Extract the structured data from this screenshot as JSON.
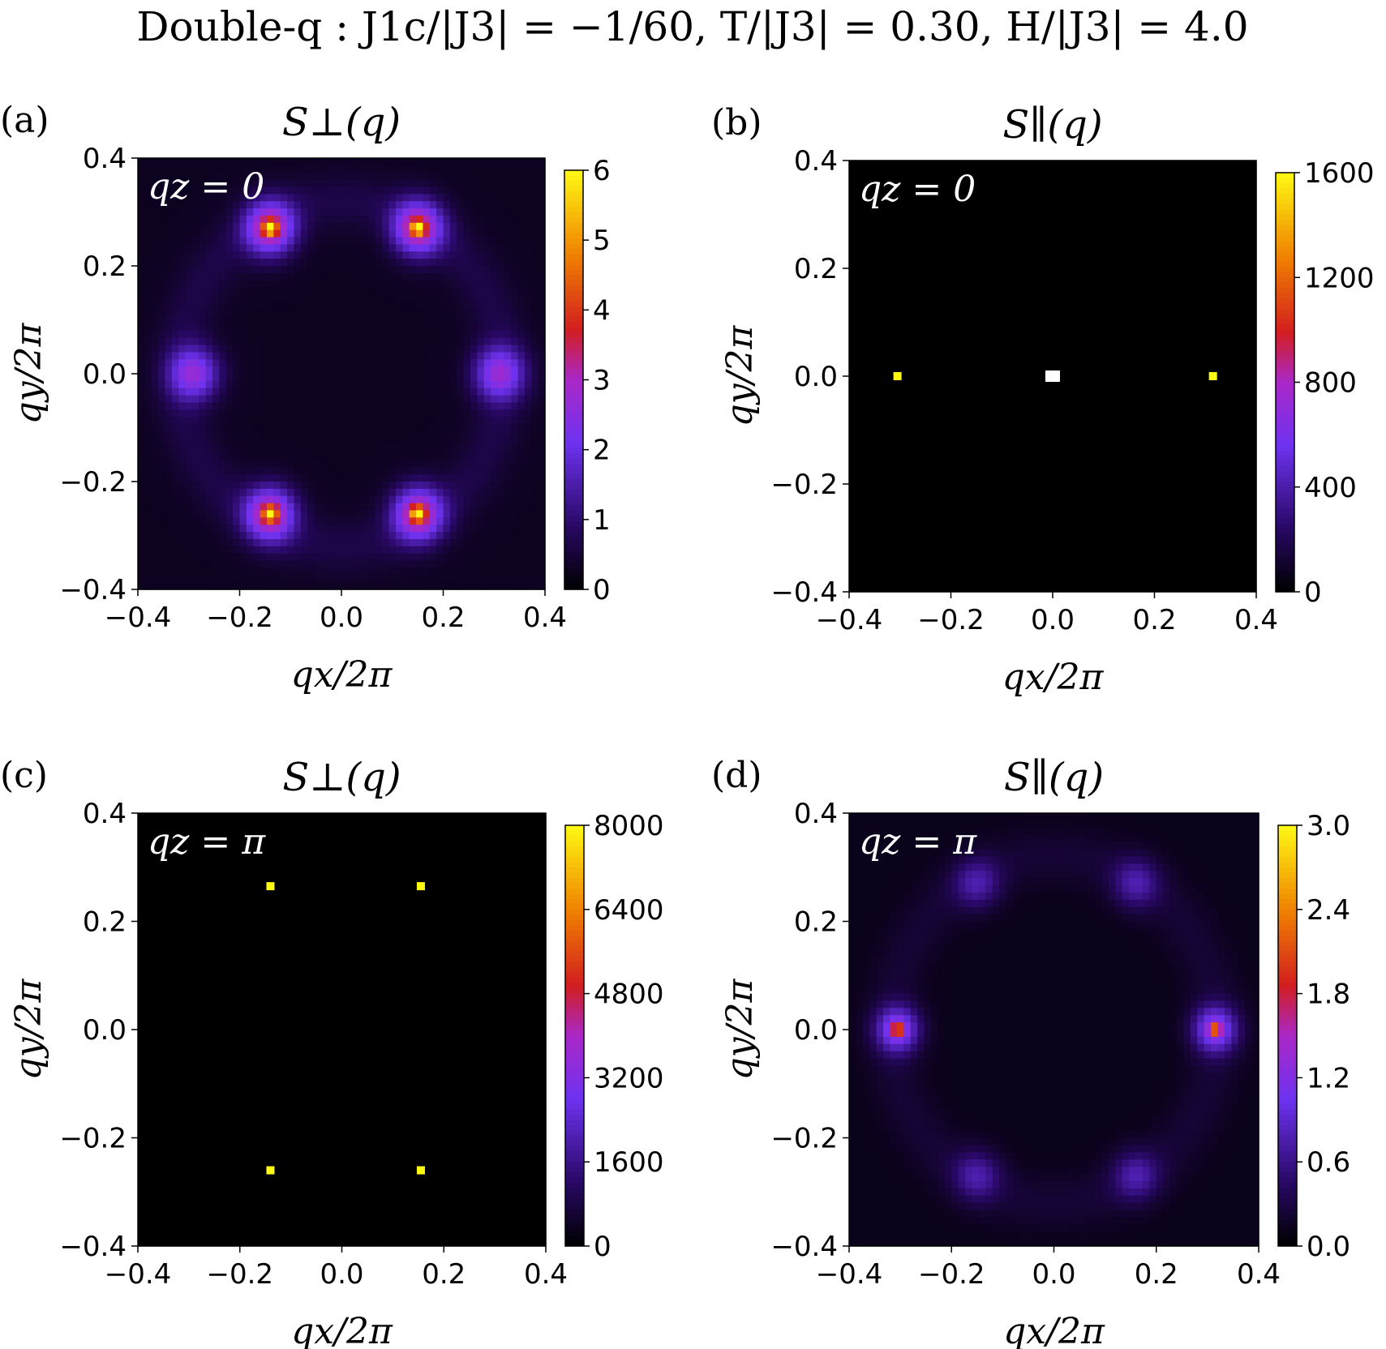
{
  "figure": {
    "title": "Double-q :  J1c/|J3| = −1/60,  T/|J3| = 0.30,  H/|J3| = 4.0"
  },
  "chart_data": [
    {
      "type": "heatmap",
      "panel_label": "(a)",
      "title": "S⊥(q)",
      "annotation": "qz = 0",
      "xlabel": "qx/2π",
      "ylabel": "qy/2π",
      "xlim": [
        -0.4,
        0.4
      ],
      "ylim": [
        -0.4,
        0.4
      ],
      "xticks": [
        "−0.4",
        "−0.2",
        "0.0",
        "0.2",
        "0.4"
      ],
      "yticks": [
        "−0.4",
        "−0.2",
        "0.0",
        "0.2",
        "0.4"
      ],
      "colorbar": {
        "min": 0,
        "max": 6,
        "ticks": [
          "0",
          "1",
          "2",
          "3",
          "4",
          "5",
          "6"
        ]
      },
      "background": 0.3,
      "ring": {
        "radius": 0.32,
        "width": 0.05,
        "amp": 0.35
      },
      "peaks": [
        {
          "x": -0.14,
          "y": 0.27,
          "amp": 3.0,
          "width": 0.035,
          "core": 3.0,
          "core_width": 0.009
        },
        {
          "x": 0.15,
          "y": 0.27,
          "amp": 3.0,
          "width": 0.035,
          "core": 3.0,
          "core_width": 0.009
        },
        {
          "x": -0.29,
          "y": 0.0,
          "amp": 2.2,
          "width": 0.035
        },
        {
          "x": 0.31,
          "y": 0.0,
          "amp": 2.2,
          "width": 0.035
        },
        {
          "x": -0.14,
          "y": -0.26,
          "amp": 3.0,
          "width": 0.035,
          "core": 3.0,
          "core_width": 0.009
        },
        {
          "x": 0.15,
          "y": -0.26,
          "amp": 3.0,
          "width": 0.035,
          "core": 3.0,
          "core_width": 0.009
        }
      ]
    },
    {
      "type": "heatmap",
      "panel_label": "(b)",
      "title": "S∥(q)",
      "annotation": "qz = 0",
      "xlabel": "qx/2π",
      "ylabel": "qy/2π",
      "xlim": [
        -0.4,
        0.4
      ],
      "ylim": [
        -0.4,
        0.4
      ],
      "xticks": [
        "−0.4",
        "−0.2",
        "0.0",
        "0.2",
        "0.4"
      ],
      "yticks": [
        "−0.4",
        "−0.2",
        "0.0",
        "0.2",
        "0.4"
      ],
      "colorbar": {
        "min": 0,
        "max": 1600,
        "ticks": [
          "0",
          "400",
          "800",
          "1200",
          "1600"
        ]
      },
      "background": 0,
      "points": [
        {
          "x": -0.305,
          "y": 0.0,
          "value": 1600
        },
        {
          "x": 0.315,
          "y": 0.0,
          "value": 1600
        }
      ],
      "masked_points": [
        {
          "x": 0.0,
          "y": 0.0
        }
      ]
    },
    {
      "type": "heatmap",
      "panel_label": "(c)",
      "title": "S⊥(q)",
      "annotation": "qz = π",
      "xlabel": "qx/2π",
      "ylabel": "qy/2π",
      "xlim": [
        -0.4,
        0.4
      ],
      "ylim": [
        -0.4,
        0.4
      ],
      "xticks": [
        "−0.4",
        "−0.2",
        "0.0",
        "0.2",
        "0.4"
      ],
      "yticks": [
        "−0.4",
        "−0.2",
        "0.0",
        "0.2",
        "0.4"
      ],
      "colorbar": {
        "min": 0,
        "max": 8000,
        "ticks": [
          "0",
          "1600",
          "3200",
          "4800",
          "6400",
          "8000"
        ]
      },
      "background": 0,
      "points": [
        {
          "x": -0.14,
          "y": 0.265,
          "value": 8000
        },
        {
          "x": 0.155,
          "y": 0.265,
          "value": 8000
        },
        {
          "x": -0.14,
          "y": -0.26,
          "value": 8000
        },
        {
          "x": 0.155,
          "y": -0.26,
          "value": 8000
        }
      ]
    },
    {
      "type": "heatmap",
      "panel_label": "(d)",
      "title": "S∥(q)",
      "annotation": "qz = π",
      "xlabel": "qx/2π",
      "ylabel": "qy/2π",
      "xlim": [
        -0.4,
        0.4
      ],
      "ylim": [
        -0.4,
        0.4
      ],
      "xticks": [
        "−0.4",
        "−0.2",
        "0.0",
        "0.2",
        "0.4"
      ],
      "yticks": [
        "−0.4",
        "−0.2",
        "0.0",
        "0.2",
        "0.4"
      ],
      "colorbar": {
        "min": 0,
        "max": 3.0,
        "ticks": [
          "0.0",
          "0.6",
          "1.2",
          "1.8",
          "2.4",
          "3.0"
        ]
      },
      "background": 0.12,
      "ring": {
        "radius": 0.32,
        "width": 0.05,
        "amp": 0.12
      },
      "peaks": [
        {
          "x": -0.15,
          "y": 0.27,
          "amp": 0.55,
          "width": 0.032
        },
        {
          "x": 0.16,
          "y": 0.27,
          "amp": 0.55,
          "width": 0.032
        },
        {
          "x": -0.305,
          "y": 0.0,
          "amp": 1.1,
          "width": 0.03,
          "core": 1.2,
          "core_width": 0.008
        },
        {
          "x": 0.315,
          "y": 0.0,
          "amp": 1.1,
          "width": 0.03,
          "core": 1.2,
          "core_width": 0.008
        },
        {
          "x": -0.15,
          "y": -0.27,
          "amp": 0.55,
          "width": 0.032
        },
        {
          "x": 0.16,
          "y": -0.27,
          "amp": 0.55,
          "width": 0.032
        }
      ]
    }
  ]
}
